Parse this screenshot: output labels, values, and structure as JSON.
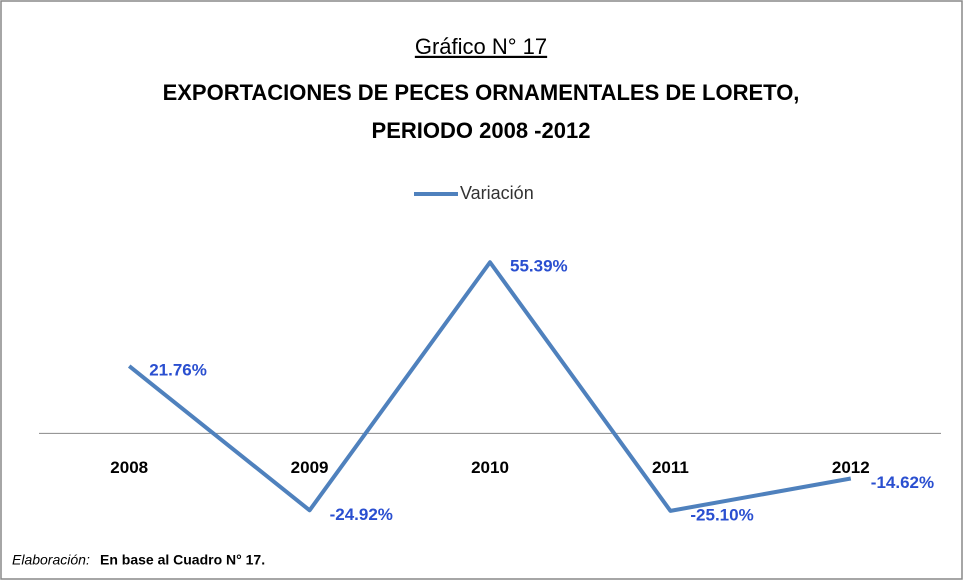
{
  "chart_data": {
    "type": "line",
    "title": "Gráfico N° 17",
    "subtitle": [
      "EXPORTACIONES DE PECES ORNAMENTALES DE LORETO,",
      "PERIODO 2008 -2012"
    ],
    "categories": [
      "2008",
      "2009",
      "2010",
      "2011",
      "2012"
    ],
    "series": [
      {
        "name": "Variación",
        "color": "#4f81bd",
        "values": [
          21.76,
          -24.92,
          55.39,
          -25.1,
          -14.62
        ],
        "value_labels": [
          "21.76%",
          "-24.92%",
          "55.39%",
          "-25.10%",
          "-14.62%"
        ]
      }
    ],
    "ylim": [
      -30,
      60
    ],
    "legend": "top",
    "source": {
      "label": "Elaboración:",
      "text": "En base al Cuadro N° 17."
    }
  }
}
